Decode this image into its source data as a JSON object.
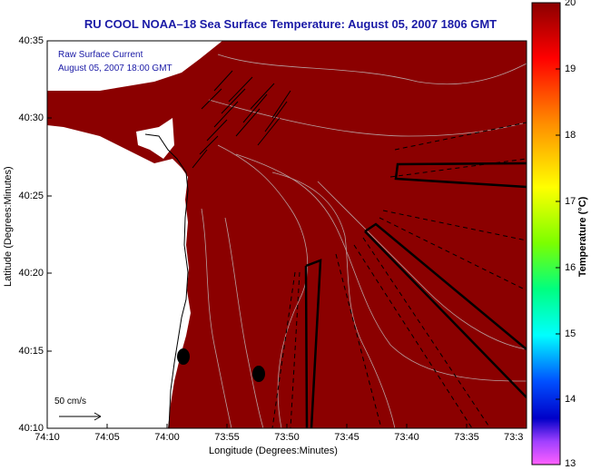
{
  "title": "RU COOL  NOAA–18  Sea Surface Temperature:  August 05, 2007 1806 GMT",
  "axes": {
    "ylabel": "Latitude (Degrees:Minutes)",
    "xlabel": "Longitude (Degrees:Minutes)",
    "y_ticks": [
      "40:35",
      "40:30",
      "40:25",
      "40:20",
      "40:15",
      "40:10"
    ],
    "x_ticks": [
      "74:10",
      "74:05",
      "74:00",
      "73:55",
      "73:50",
      "73:45",
      "73:40",
      "73:35",
      "73:3"
    ]
  },
  "legend": {
    "line1": "Raw Surface Current",
    "line2": "August 05, 2007 18:00 GMT"
  },
  "scale_bar": {
    "label": "50 cm/s"
  },
  "colorbar": {
    "title": "Temperature (°C)",
    "ticks": [
      "20",
      "19",
      "18",
      "17",
      "16",
      "15",
      "14",
      "13"
    ],
    "range": [
      13,
      20
    ]
  },
  "colors": {
    "sst": "#8b0000",
    "land": "#ffffff",
    "title": "#1a1aa6"
  }
}
